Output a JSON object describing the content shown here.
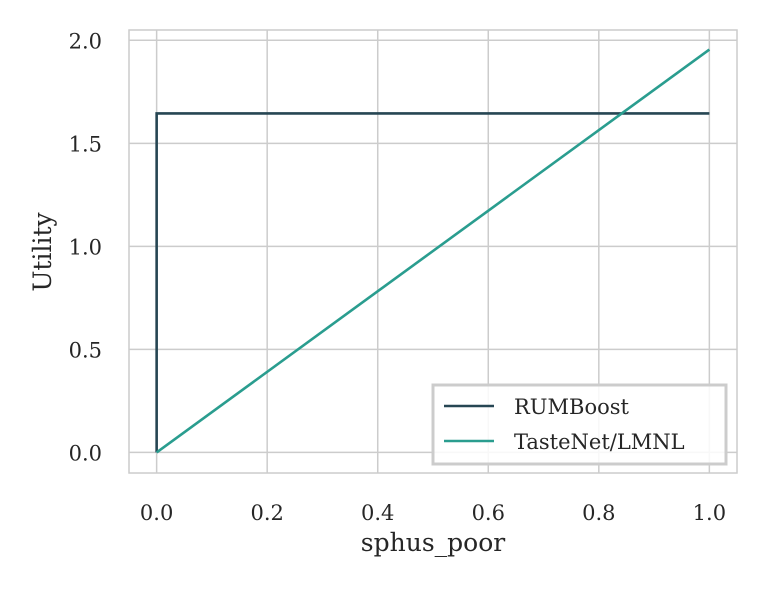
{
  "chart_data": {
    "type": "line",
    "title": "",
    "xlabel": "sphus_poor",
    "ylabel": "Utility",
    "xlim": [
      -0.05,
      1.05
    ],
    "ylim": [
      -0.1,
      2.05
    ],
    "xticks": [
      0.0,
      0.2,
      0.4,
      0.6,
      0.8,
      1.0
    ],
    "xtick_labels": [
      "0.0",
      "0.2",
      "0.4",
      "0.6",
      "0.8",
      "1.0"
    ],
    "yticks": [
      0.0,
      0.5,
      1.0,
      1.5,
      2.0
    ],
    "ytick_labels": [
      "0.0",
      "0.5",
      "1.0",
      "1.5",
      "2.0"
    ],
    "grid": true,
    "legend_position": "lower-right",
    "series": [
      {
        "name": "RUMBoost",
        "color": "#264653",
        "x": [
          0.0,
          0.0,
          1.0
        ],
        "y": [
          0.0,
          1.645,
          1.645
        ]
      },
      {
        "name": "TasteNet/LMNL",
        "color": "#2a9d8f",
        "x": [
          0.0,
          1.0
        ],
        "y": [
          0.0,
          1.955
        ]
      }
    ]
  }
}
